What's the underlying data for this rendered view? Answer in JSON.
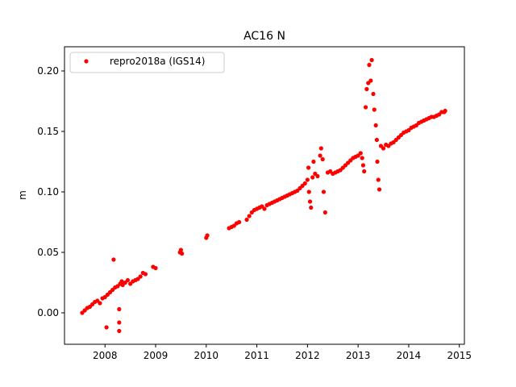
{
  "chart_data": {
    "type": "scatter",
    "title": "AC16 N",
    "xlabel": "",
    "ylabel": "m",
    "xlim": [
      2007.2,
      2015.1
    ],
    "ylim": [
      -0.026,
      0.22
    ],
    "xticks": [
      2008,
      2009,
      2010,
      2011,
      2012,
      2013,
      2014,
      2015
    ],
    "yticks": [
      0.0,
      0.05,
      0.1,
      0.15,
      0.2
    ],
    "ytick_labels": [
      "0.00",
      "0.05",
      "0.10",
      "0.15",
      "0.20"
    ],
    "legend_position": "top-left",
    "grid": false,
    "color": "#ff0000",
    "series": [
      {
        "name": "repro2018a (IGS14)",
        "points": [
          [
            2007.55,
            0.0
          ],
          [
            2007.6,
            0.002
          ],
          [
            2007.65,
            0.004
          ],
          [
            2007.7,
            0.005
          ],
          [
            2007.75,
            0.007
          ],
          [
            2007.8,
            0.009
          ],
          [
            2007.85,
            0.01
          ],
          [
            2007.9,
            0.008
          ],
          [
            2007.95,
            0.012
          ],
          [
            2008.0,
            0.013
          ],
          [
            2008.03,
            -0.012
          ],
          [
            2008.05,
            0.015
          ],
          [
            2008.1,
            0.017
          ],
          [
            2008.15,
            0.019
          ],
          [
            2008.17,
            0.044
          ],
          [
            2008.2,
            0.021
          ],
          [
            2008.25,
            0.022
          ],
          [
            2008.28,
            0.003
          ],
          [
            2008.28,
            -0.008
          ],
          [
            2008.28,
            -0.015
          ],
          [
            2008.3,
            0.024
          ],
          [
            2008.33,
            0.026
          ],
          [
            2008.35,
            0.023
          ],
          [
            2008.4,
            0.025
          ],
          [
            2008.45,
            0.027
          ],
          [
            2008.5,
            0.024
          ],
          [
            2008.55,
            0.026
          ],
          [
            2008.6,
            0.027
          ],
          [
            2008.65,
            0.028
          ],
          [
            2008.7,
            0.03
          ],
          [
            2008.75,
            0.033
          ],
          [
            2008.8,
            0.032
          ],
          [
            2008.95,
            0.038
          ],
          [
            2009.0,
            0.037
          ],
          [
            2009.48,
            0.05
          ],
          [
            2009.5,
            0.052
          ],
          [
            2009.52,
            0.049
          ],
          [
            2010.0,
            0.062
          ],
          [
            2010.02,
            0.064
          ],
          [
            2010.45,
            0.07
          ],
          [
            2010.5,
            0.071
          ],
          [
            2010.55,
            0.072
          ],
          [
            2010.6,
            0.074
          ],
          [
            2010.65,
            0.075
          ],
          [
            2010.8,
            0.077
          ],
          [
            2010.85,
            0.08
          ],
          [
            2010.9,
            0.083
          ],
          [
            2010.95,
            0.085
          ],
          [
            2011.0,
            0.086
          ],
          [
            2011.05,
            0.087
          ],
          [
            2011.1,
            0.088
          ],
          [
            2011.15,
            0.086
          ],
          [
            2011.2,
            0.089
          ],
          [
            2011.25,
            0.09
          ],
          [
            2011.3,
            0.091
          ],
          [
            2011.35,
            0.092
          ],
          [
            2011.4,
            0.093
          ],
          [
            2011.45,
            0.094
          ],
          [
            2011.5,
            0.095
          ],
          [
            2011.55,
            0.096
          ],
          [
            2011.6,
            0.097
          ],
          [
            2011.65,
            0.098
          ],
          [
            2011.7,
            0.099
          ],
          [
            2011.75,
            0.1
          ],
          [
            2011.8,
            0.101
          ],
          [
            2011.85,
            0.103
          ],
          [
            2011.9,
            0.105
          ],
          [
            2011.95,
            0.107
          ],
          [
            2012.0,
            0.11
          ],
          [
            2012.02,
            0.12
          ],
          [
            2012.03,
            0.1
          ],
          [
            2012.05,
            0.092
          ],
          [
            2012.07,
            0.087
          ],
          [
            2012.1,
            0.112
          ],
          [
            2012.12,
            0.125
          ],
          [
            2012.15,
            0.115
          ],
          [
            2012.2,
            0.113
          ],
          [
            2012.25,
            0.13
          ],
          [
            2012.27,
            0.136
          ],
          [
            2012.3,
            0.127
          ],
          [
            2012.32,
            0.1
          ],
          [
            2012.35,
            0.083
          ],
          [
            2012.4,
            0.116
          ],
          [
            2012.45,
            0.117
          ],
          [
            2012.5,
            0.115
          ],
          [
            2012.55,
            0.116
          ],
          [
            2012.6,
            0.117
          ],
          [
            2012.65,
            0.118
          ],
          [
            2012.7,
            0.12
          ],
          [
            2012.75,
            0.122
          ],
          [
            2012.8,
            0.124
          ],
          [
            2012.85,
            0.126
          ],
          [
            2012.9,
            0.128
          ],
          [
            2012.95,
            0.129
          ],
          [
            2013.0,
            0.13
          ],
          [
            2013.05,
            0.132
          ],
          [
            2013.08,
            0.128
          ],
          [
            2013.1,
            0.122
          ],
          [
            2013.12,
            0.117
          ],
          [
            2013.15,
            0.17
          ],
          [
            2013.17,
            0.185
          ],
          [
            2013.2,
            0.19
          ],
          [
            2013.22,
            0.205
          ],
          [
            2013.25,
            0.192
          ],
          [
            2013.27,
            0.209
          ],
          [
            2013.3,
            0.181
          ],
          [
            2013.32,
            0.168
          ],
          [
            2013.35,
            0.155
          ],
          [
            2013.37,
            0.143
          ],
          [
            2013.38,
            0.125
          ],
          [
            2013.4,
            0.11
          ],
          [
            2013.42,
            0.102
          ],
          [
            2013.45,
            0.138
          ],
          [
            2013.5,
            0.136
          ],
          [
            2013.55,
            0.139
          ],
          [
            2013.6,
            0.138
          ],
          [
            2013.65,
            0.14
          ],
          [
            2013.7,
            0.141
          ],
          [
            2013.75,
            0.143
          ],
          [
            2013.8,
            0.145
          ],
          [
            2013.85,
            0.147
          ],
          [
            2013.9,
            0.149
          ],
          [
            2013.95,
            0.15
          ],
          [
            2014.0,
            0.151
          ],
          [
            2014.05,
            0.153
          ],
          [
            2014.1,
            0.154
          ],
          [
            2014.15,
            0.155
          ],
          [
            2014.2,
            0.157
          ],
          [
            2014.25,
            0.158
          ],
          [
            2014.3,
            0.159
          ],
          [
            2014.35,
            0.16
          ],
          [
            2014.4,
            0.161
          ],
          [
            2014.45,
            0.162
          ],
          [
            2014.5,
            0.162
          ],
          [
            2014.55,
            0.163
          ],
          [
            2014.6,
            0.164
          ],
          [
            2014.65,
            0.166
          ],
          [
            2014.7,
            0.166
          ],
          [
            2014.72,
            0.167
          ]
        ]
      }
    ]
  }
}
